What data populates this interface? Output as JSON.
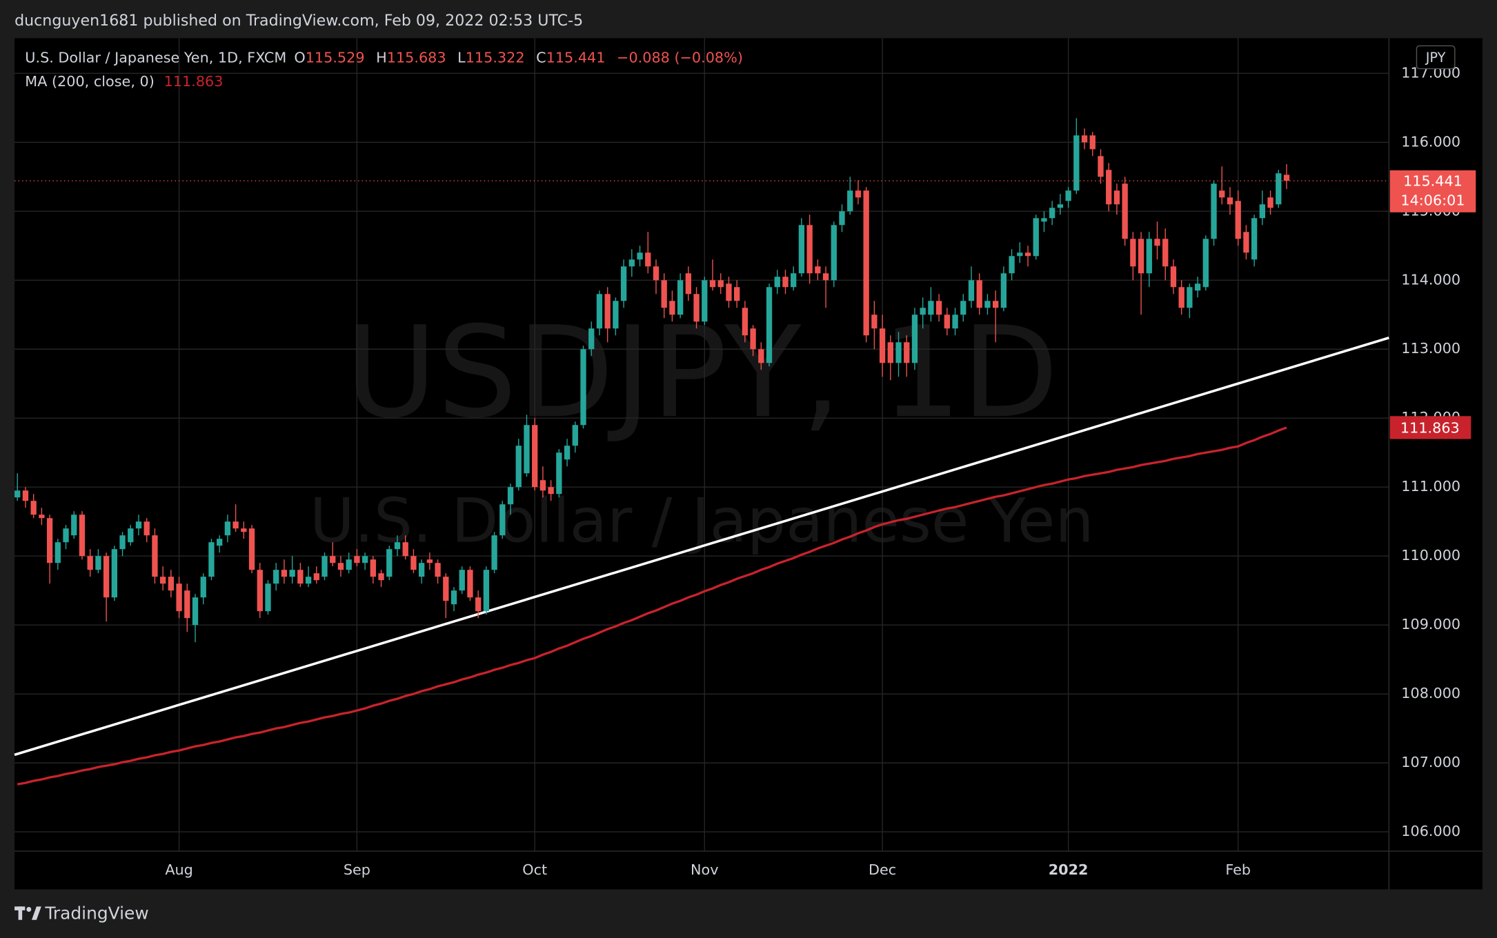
{
  "header": {
    "text": "ducnguyen1681 published on TradingView.com, Feb 09, 2022 02:53 UTC-5"
  },
  "chart_data": {
    "type": "candlestick",
    "title": "U.S. Dollar / Japanese Yen, 1D, FXCM",
    "ohlc_labels": [
      "O",
      "H",
      "L",
      "C"
    ],
    "change_label": "−0.088 (−0.08%)",
    "currency": "JPY",
    "countdown": "14:06:01",
    "symbol_watermark": "USDJPY, 1D",
    "description_watermark": "U.S. Dollar / Japanese Yen",
    "up_color": "#26a69a",
    "down_color": "#ef5350",
    "ylim": [
      105.72,
      117.51
    ],
    "yticks": [
      {
        "value": 106,
        "label": "106.000"
      },
      {
        "value": 107,
        "label": "107.000"
      },
      {
        "value": 108,
        "label": "108.000"
      },
      {
        "value": 109,
        "label": "109.000"
      },
      {
        "value": 110,
        "label": "110.000"
      },
      {
        "value": 111,
        "label": "111.000"
      },
      {
        "value": 112,
        "label": "112.000"
      },
      {
        "value": 113,
        "label": "113.000"
      },
      {
        "value": 114,
        "label": "114.000"
      },
      {
        "value": 115,
        "label": "115.000"
      },
      {
        "value": 116,
        "label": "116.000"
      },
      {
        "value": 117,
        "label": "117.000"
      }
    ],
    "grid": true,
    "categories": [
      null,
      null,
      null,
      null,
      null,
      null,
      null,
      null,
      null,
      null,
      null,
      null,
      null,
      null,
      null,
      null,
      null,
      null,
      null,
      null,
      "Aug",
      null,
      null,
      null,
      null,
      null,
      null,
      null,
      null,
      null,
      null,
      null,
      null,
      null,
      null,
      null,
      null,
      null,
      null,
      null,
      null,
      null,
      "Sep",
      null,
      null,
      null,
      null,
      null,
      null,
      null,
      null,
      null,
      null,
      null,
      null,
      null,
      null,
      null,
      null,
      null,
      null,
      null,
      null,
      null,
      "Oct",
      null,
      null,
      null,
      null,
      null,
      null,
      null,
      null,
      null,
      null,
      null,
      null,
      null,
      null,
      null,
      null,
      null,
      null,
      null,
      null,
      "Nov",
      null,
      null,
      null,
      null,
      null,
      null,
      null,
      null,
      null,
      null,
      null,
      null,
      null,
      null,
      null,
      null,
      null,
      null,
      null,
      null,
      null,
      "Dec",
      null,
      null,
      null,
      null,
      null,
      null,
      null,
      null,
      null,
      null,
      null,
      null,
      null,
      null,
      null,
      null,
      null,
      null,
      null,
      null,
      null,
      null,
      "2022",
      null,
      null,
      null,
      null,
      null,
      null,
      null,
      null,
      null,
      null,
      null,
      null,
      null,
      null,
      null,
      null,
      null,
      null,
      null,
      null,
      "Feb",
      null,
      null,
      null,
      null,
      null,
      null
    ],
    "ohlc": [
      [
        110.85,
        111.2,
        110.8,
        110.95
      ],
      [
        110.95,
        111.0,
        110.7,
        110.8
      ],
      [
        110.8,
        110.9,
        110.55,
        110.6
      ],
      [
        110.6,
        110.7,
        110.45,
        110.55
      ],
      [
        110.55,
        110.6,
        109.6,
        109.9
      ],
      [
        109.9,
        110.25,
        109.8,
        110.2
      ],
      [
        110.2,
        110.45,
        110.1,
        110.4
      ],
      [
        110.3,
        110.65,
        110.25,
        110.6
      ],
      [
        110.6,
        110.65,
        109.95,
        110.0
      ],
      [
        110.0,
        110.1,
        109.7,
        109.8
      ],
      [
        109.8,
        110.1,
        109.75,
        110.0
      ],
      [
        110.0,
        110.05,
        109.05,
        109.4
      ],
      [
        109.4,
        110.15,
        109.35,
        110.1
      ],
      [
        110.1,
        110.35,
        110.0,
        110.3
      ],
      [
        110.2,
        110.45,
        110.15,
        110.4
      ],
      [
        110.4,
        110.6,
        110.3,
        110.5
      ],
      [
        110.5,
        110.55,
        110.2,
        110.3
      ],
      [
        110.3,
        110.4,
        109.6,
        109.7
      ],
      [
        109.7,
        109.85,
        109.5,
        109.6
      ],
      [
        109.7,
        109.8,
        109.4,
        109.5
      ],
      [
        109.6,
        109.7,
        109.1,
        109.2
      ],
      [
        109.5,
        109.6,
        108.9,
        109.1
      ],
      [
        109.0,
        109.45,
        108.75,
        109.4
      ],
      [
        109.4,
        109.75,
        109.3,
        109.7
      ],
      [
        109.7,
        110.25,
        109.65,
        110.2
      ],
      [
        110.15,
        110.3,
        110.05,
        110.25
      ],
      [
        110.3,
        110.6,
        110.2,
        110.5
      ],
      [
        110.5,
        110.75,
        110.35,
        110.4
      ],
      [
        110.4,
        110.5,
        110.25,
        110.35
      ],
      [
        110.4,
        110.45,
        109.75,
        109.8
      ],
      [
        109.8,
        109.9,
        109.1,
        109.2
      ],
      [
        109.2,
        109.65,
        109.15,
        109.6
      ],
      [
        109.6,
        109.9,
        109.5,
        109.8
      ],
      [
        109.8,
        109.95,
        109.6,
        109.7
      ],
      [
        109.7,
        110.0,
        109.6,
        109.8
      ],
      [
        109.8,
        109.9,
        109.55,
        109.6
      ],
      [
        109.6,
        109.85,
        109.55,
        109.7
      ],
      [
        109.75,
        109.85,
        109.6,
        109.65
      ],
      [
        109.7,
        110.05,
        109.65,
        110.0
      ],
      [
        110.0,
        110.2,
        109.85,
        109.9
      ],
      [
        109.9,
        110.0,
        109.7,
        109.8
      ],
      [
        109.8,
        110.05,
        109.75,
        109.95
      ],
      [
        110.0,
        110.1,
        109.85,
        109.9
      ],
      [
        109.9,
        110.05,
        109.8,
        110.0
      ],
      [
        109.95,
        110.0,
        109.6,
        109.7
      ],
      [
        109.75,
        109.8,
        109.55,
        109.65
      ],
      [
        109.7,
        110.15,
        109.65,
        110.1
      ],
      [
        110.1,
        110.3,
        110.0,
        110.2
      ],
      [
        110.2,
        110.3,
        109.95,
        110.0
      ],
      [
        110.0,
        110.1,
        109.75,
        109.8
      ],
      [
        109.7,
        109.95,
        109.6,
        109.9
      ],
      [
        109.95,
        110.05,
        109.8,
        109.9
      ],
      [
        109.9,
        109.95,
        109.6,
        109.7
      ],
      [
        109.7,
        109.75,
        109.1,
        109.35
      ],
      [
        109.3,
        109.55,
        109.2,
        109.5
      ],
      [
        109.5,
        109.85,
        109.45,
        109.8
      ],
      [
        109.8,
        109.85,
        109.35,
        109.4
      ],
      [
        109.4,
        109.5,
        109.1,
        109.2
      ],
      [
        109.2,
        109.85,
        109.15,
        109.8
      ],
      [
        109.8,
        110.35,
        109.75,
        110.3
      ],
      [
        110.3,
        110.8,
        110.25,
        110.75
      ],
      [
        110.75,
        111.05,
        110.6,
        111.0
      ],
      [
        111.0,
        111.7,
        110.95,
        111.6
      ],
      [
        111.2,
        112.05,
        111.15,
        111.9
      ],
      [
        111.9,
        112.0,
        110.95,
        111.0
      ],
      [
        111.1,
        111.3,
        110.85,
        110.95
      ],
      [
        111.0,
        111.1,
        110.8,
        110.9
      ],
      [
        110.9,
        111.55,
        110.85,
        111.5
      ],
      [
        111.4,
        111.7,
        111.3,
        111.6
      ],
      [
        111.6,
        111.95,
        111.5,
        111.9
      ],
      [
        111.9,
        113.05,
        111.85,
        113.0
      ],
      [
        113.0,
        113.4,
        112.9,
        113.3
      ],
      [
        113.3,
        113.85,
        113.2,
        113.8
      ],
      [
        113.8,
        113.9,
        113.1,
        113.3
      ],
      [
        113.3,
        113.75,
        113.2,
        113.7
      ],
      [
        113.7,
        114.3,
        113.6,
        114.2
      ],
      [
        114.2,
        114.45,
        114.05,
        114.3
      ],
      [
        114.3,
        114.5,
        114.2,
        114.4
      ],
      [
        114.4,
        114.7,
        114.1,
        114.2
      ],
      [
        114.2,
        114.3,
        113.8,
        114.0
      ],
      [
        114.0,
        114.1,
        113.45,
        113.6
      ],
      [
        113.7,
        113.85,
        113.4,
        113.5
      ],
      [
        113.5,
        114.1,
        113.45,
        114.0
      ],
      [
        114.1,
        114.2,
        113.7,
        113.8
      ],
      [
        113.8,
        113.9,
        113.3,
        113.4
      ],
      [
        113.4,
        114.05,
        113.35,
        114.0
      ],
      [
        114.0,
        114.3,
        113.85,
        113.9
      ],
      [
        114.0,
        114.1,
        113.8,
        113.9
      ],
      [
        113.95,
        114.05,
        113.6,
        113.7
      ],
      [
        113.9,
        114.0,
        113.6,
        113.7
      ],
      [
        113.6,
        113.7,
        113.1,
        113.2
      ],
      [
        113.3,
        113.35,
        112.9,
        113.0
      ],
      [
        113.0,
        113.1,
        112.7,
        112.8
      ],
      [
        112.8,
        113.95,
        112.75,
        113.9
      ],
      [
        113.9,
        114.15,
        113.8,
        114.05
      ],
      [
        114.05,
        114.15,
        113.8,
        113.9
      ],
      [
        113.9,
        114.2,
        113.85,
        114.1
      ],
      [
        114.1,
        114.9,
        114.05,
        114.8
      ],
      [
        114.8,
        114.95,
        113.95,
        114.1
      ],
      [
        114.2,
        114.3,
        114.0,
        114.1
      ],
      [
        114.1,
        114.2,
        113.6,
        114.0
      ],
      [
        114.0,
        114.85,
        113.9,
        114.8
      ],
      [
        114.8,
        115.1,
        114.7,
        115.0
      ],
      [
        115.0,
        115.5,
        114.95,
        115.3
      ],
      [
        115.3,
        115.45,
        115.1,
        115.2
      ],
      [
        115.3,
        115.35,
        113.1,
        113.2
      ],
      [
        113.5,
        113.7,
        113.0,
        113.3
      ],
      [
        113.3,
        113.5,
        112.6,
        112.8
      ],
      [
        113.1,
        113.2,
        112.55,
        112.8
      ],
      [
        112.8,
        113.25,
        112.6,
        113.1
      ],
      [
        113.1,
        113.2,
        112.6,
        112.8
      ],
      [
        112.8,
        113.6,
        112.7,
        113.5
      ],
      [
        113.5,
        113.75,
        113.3,
        113.6
      ],
      [
        113.5,
        113.9,
        113.4,
        113.7
      ],
      [
        113.7,
        113.8,
        113.4,
        113.5
      ],
      [
        113.5,
        113.6,
        113.2,
        113.3
      ],
      [
        113.3,
        113.6,
        113.2,
        113.5
      ],
      [
        113.5,
        113.8,
        113.4,
        113.7
      ],
      [
        113.7,
        114.2,
        113.6,
        114.0
      ],
      [
        114.0,
        114.1,
        113.5,
        113.6
      ],
      [
        113.6,
        113.8,
        113.5,
        113.7
      ],
      [
        113.7,
        113.85,
        113.1,
        113.6
      ],
      [
        113.6,
        114.2,
        113.55,
        114.1
      ],
      [
        114.1,
        114.45,
        114.0,
        114.35
      ],
      [
        114.35,
        114.55,
        114.25,
        114.4
      ],
      [
        114.4,
        114.5,
        114.2,
        114.35
      ],
      [
        114.35,
        114.95,
        114.3,
        114.9
      ],
      [
        114.85,
        115.0,
        114.7,
        114.9
      ],
      [
        114.9,
        115.15,
        114.8,
        115.05
      ],
      [
        115.05,
        115.25,
        114.95,
        115.1
      ],
      [
        115.15,
        115.35,
        115.05,
        115.3
      ],
      [
        115.3,
        116.35,
        115.25,
        116.1
      ],
      [
        116.1,
        116.2,
        115.9,
        116.0
      ],
      [
        116.1,
        116.15,
        115.8,
        115.9
      ],
      [
        115.8,
        115.9,
        115.4,
        115.5
      ],
      [
        115.6,
        115.7,
        115.0,
        115.1
      ],
      [
        115.3,
        115.4,
        114.95,
        115.1
      ],
      [
        115.4,
        115.5,
        114.5,
        114.6
      ],
      [
        114.6,
        114.7,
        114.0,
        114.2
      ],
      [
        114.6,
        114.7,
        113.5,
        114.1
      ],
      [
        114.1,
        114.7,
        113.9,
        114.6
      ],
      [
        114.6,
        114.85,
        114.3,
        114.5
      ],
      [
        114.6,
        114.75,
        114.0,
        114.2
      ],
      [
        114.2,
        114.3,
        113.8,
        113.9
      ],
      [
        113.9,
        114.0,
        113.5,
        113.6
      ],
      [
        113.6,
        113.95,
        113.45,
        113.9
      ],
      [
        113.85,
        114.05,
        113.75,
        113.95
      ],
      [
        113.9,
        114.65,
        113.85,
        114.6
      ],
      [
        114.6,
        115.45,
        114.5,
        115.4
      ],
      [
        115.3,
        115.65,
        115.1,
        115.2
      ],
      [
        115.2,
        115.35,
        114.95,
        115.1
      ],
      [
        115.15,
        115.3,
        114.5,
        114.6
      ],
      [
        114.7,
        114.8,
        114.3,
        114.4
      ],
      [
        114.3,
        114.95,
        114.2,
        114.9
      ],
      [
        114.9,
        115.3,
        114.8,
        115.1
      ],
      [
        115.2,
        115.3,
        114.95,
        115.05
      ],
      [
        115.1,
        115.6,
        115.05,
        115.55
      ],
      [
        115.529,
        115.683,
        115.322,
        115.441
      ]
    ],
    "ma": {
      "name": "MA (200, close, 0)",
      "color": "#c8232c",
      "values": [
        106.69,
        106.71,
        106.74,
        106.76,
        106.79,
        106.81,
        106.84,
        106.86,
        106.89,
        106.91,
        106.94,
        106.96,
        106.98,
        107.01,
        107.03,
        107.06,
        107.08,
        107.11,
        107.13,
        107.16,
        107.18,
        107.21,
        107.24,
        107.26,
        107.29,
        107.31,
        107.34,
        107.37,
        107.39,
        107.42,
        107.44,
        107.47,
        107.5,
        107.52,
        107.55,
        107.58,
        107.6,
        107.63,
        107.66,
        107.68,
        107.71,
        107.73,
        107.76,
        107.79,
        107.83,
        107.86,
        107.9,
        107.93,
        107.97,
        108.0,
        108.04,
        108.07,
        108.11,
        108.14,
        108.17,
        108.21,
        108.24,
        108.28,
        108.31,
        108.35,
        108.38,
        108.42,
        108.45,
        108.49,
        108.52,
        108.57,
        108.61,
        108.66,
        108.7,
        108.75,
        108.8,
        108.84,
        108.89,
        108.94,
        108.98,
        109.03,
        109.07,
        109.12,
        109.17,
        109.21,
        109.26,
        109.31,
        109.35,
        109.4,
        109.44,
        109.49,
        109.53,
        109.58,
        109.62,
        109.67,
        109.71,
        109.75,
        109.8,
        109.84,
        109.89,
        109.93,
        109.97,
        110.02,
        110.06,
        110.11,
        110.15,
        110.19,
        110.24,
        110.28,
        110.33,
        110.37,
        110.42,
        110.46,
        110.49,
        110.52,
        110.54,
        110.57,
        110.6,
        110.63,
        110.66,
        110.69,
        110.71,
        110.74,
        110.77,
        110.8,
        110.83,
        110.86,
        110.88,
        110.91,
        110.94,
        110.97,
        111.0,
        111.03,
        111.05,
        111.08,
        111.11,
        111.13,
        111.16,
        111.18,
        111.2,
        111.22,
        111.25,
        111.27,
        111.29,
        111.32,
        111.34,
        111.36,
        111.38,
        111.41,
        111.43,
        111.45,
        111.48,
        111.5,
        111.52,
        111.54,
        111.57,
        111.59,
        111.64,
        111.68,
        111.73,
        111.77,
        111.82,
        111.863
      ]
    }
  },
  "footer": {
    "brand": "TradingView"
  }
}
